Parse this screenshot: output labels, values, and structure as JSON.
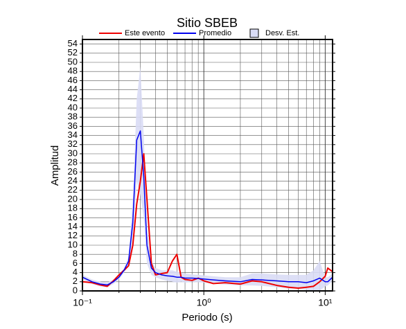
{
  "chart_data": {
    "type": "line",
    "title": "Sitio SBEB",
    "xlabel": "Periodo (s)",
    "ylabel": "Amplitud",
    "xscale": "log",
    "xlim": [
      0.1,
      11.5
    ],
    "ylim": [
      0,
      55
    ],
    "xticks": [
      {
        "value": 0.1,
        "label": "10⁻¹"
      },
      {
        "value": 1,
        "label": "10⁰"
      },
      {
        "value": 10,
        "label": "10¹"
      }
    ],
    "xminorticks": [
      0.2,
      0.3,
      0.4,
      0.5,
      0.6,
      0.7,
      0.8,
      0.9,
      2,
      3,
      4,
      5,
      6,
      7,
      8,
      9
    ],
    "yticks": [
      0,
      2,
      4,
      6,
      8,
      10,
      12,
      14,
      16,
      18,
      20,
      22,
      24,
      26,
      28,
      30,
      32,
      34,
      36,
      38,
      40,
      42,
      44,
      46,
      48,
      50,
      52,
      54
    ],
    "grid": true,
    "x": [
      0.1,
      0.12,
      0.14,
      0.16,
      0.18,
      0.2,
      0.22,
      0.24,
      0.26,
      0.28,
      0.3,
      0.32,
      0.34,
      0.37,
      0.4,
      0.45,
      0.5,
      0.55,
      0.6,
      0.65,
      0.7,
      0.8,
      0.9,
      1.0,
      1.2,
      1.5,
      2,
      2.5,
      3,
      4,
      5,
      6,
      7,
      8,
      9,
      10,
      10.5,
      11.5
    ],
    "band": {
      "name": "Desv. Est.",
      "color": "#d9dcf5",
      "high": [
        3.5,
        2.5,
        2,
        1.8,
        2.5,
        3.5,
        5,
        7.5,
        20,
        42,
        49,
        34,
        14,
        6.5,
        5,
        4.5,
        4.5,
        4.5,
        4.2,
        4,
        3.8,
        3.6,
        3.5,
        3.4,
        3.2,
        3,
        3,
        3.8,
        3.8,
        3.6,
        3.5,
        3.5,
        3.5,
        4.5,
        6.5,
        3,
        3,
        3.8
      ],
      "low": [
        2.5,
        1.5,
        1,
        0.8,
        1.5,
        2.5,
        4,
        5.5,
        10,
        24,
        21,
        16,
        6,
        3.5,
        3,
        2.5,
        2.2,
        2,
        1.8,
        2,
        1.8,
        2,
        1.9,
        1.8,
        1.6,
        1.4,
        1.2,
        1.2,
        1.1,
        0.8,
        0.5,
        0.5,
        0.2,
        0,
        0,
        1,
        1.2,
        2.2
      ]
    },
    "series": [
      {
        "name": "Este evento",
        "color": "#ee0000",
        "values": [
          2,
          1.8,
          1.3,
          1.0,
          2.2,
          3.5,
          4.5,
          5.5,
          10,
          19,
          24,
          30,
          20,
          6,
          3.5,
          3.8,
          4,
          6.5,
          8,
          3,
          2.5,
          2.3,
          2.8,
          2.2,
          1.6,
          1.8,
          1.5,
          2.2,
          2.0,
          1.2,
          0.8,
          0.6,
          0.8,
          1.0,
          2,
          3.2,
          5,
          4.2
        ]
      },
      {
        "name": "Promedio",
        "color": "#0000ee",
        "values": [
          3,
          2,
          1.5,
          1.3,
          2,
          3,
          4.5,
          6.5,
          15,
          33,
          35,
          25,
          10,
          5,
          4,
          3.5,
          3.3,
          3.2,
          3,
          3,
          2.8,
          2.8,
          2.7,
          2.6,
          2.4,
          2.2,
          2.0,
          2.5,
          2.4,
          2.2,
          2,
          2,
          1.8,
          2.2,
          2.8,
          2,
          2,
          3
        ]
      }
    ]
  }
}
